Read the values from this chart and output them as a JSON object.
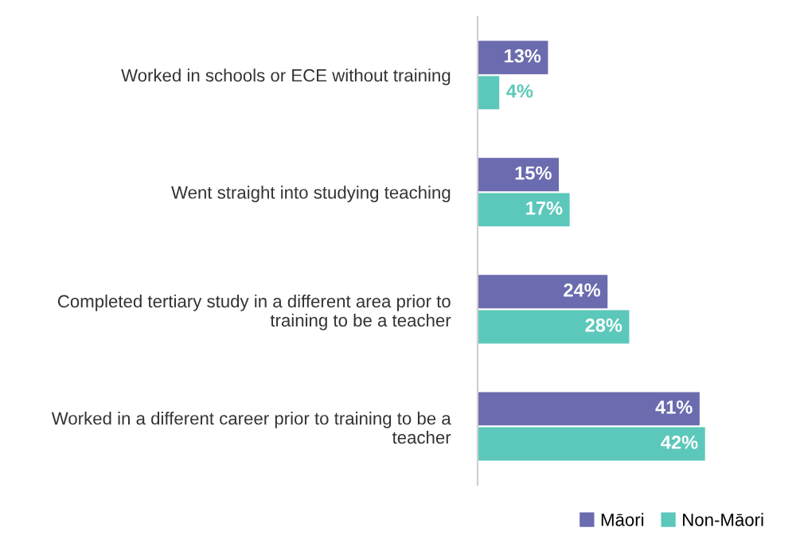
{
  "chart_data": {
    "type": "bar",
    "orientation": "horizontal",
    "categories": [
      "Worked in schools or ECE without training",
      "Went straight into studying teaching",
      "Completed tertiary study in a different area prior to\ntraining to be a teacher",
      "Worked in a different career prior to training to be a\nteacher"
    ],
    "series": [
      {
        "name": "Māori",
        "color": "#6b6baf",
        "values": [
          13,
          15,
          24,
          41
        ],
        "value_labels": [
          "13%",
          "15%",
          "24%",
          "41%"
        ]
      },
      {
        "name": "Non-Māori",
        "color": "#5cc8bb",
        "values": [
          4,
          17,
          28,
          42
        ],
        "value_labels": [
          "4%",
          "17%",
          "28%",
          "42%"
        ]
      }
    ],
    "legend": "bottom right",
    "grid": false
  }
}
